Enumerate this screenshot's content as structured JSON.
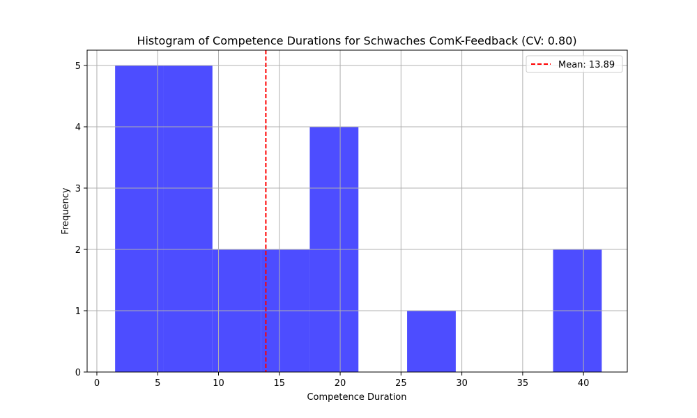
{
  "chart_data": {
    "type": "bar",
    "title": "Histogram of Competence Durations for Schwaches ComK-Feedback (CV: 0.80)",
    "xlabel": "Competence Duration",
    "ylabel": "Frequency",
    "xlim": [
      -0.8,
      43.6
    ],
    "ylim": [
      0,
      5.25
    ],
    "xticks": [
      0,
      5,
      10,
      15,
      20,
      25,
      30,
      35,
      40
    ],
    "yticks": [
      0,
      1,
      2,
      3,
      4,
      5
    ],
    "grid": true,
    "bins": [
      {
        "start": 1.5,
        "end": 5.5,
        "count": 5
      },
      {
        "start": 5.5,
        "end": 9.5,
        "count": 5
      },
      {
        "start": 9.5,
        "end": 13.5,
        "count": 2
      },
      {
        "start": 13.5,
        "end": 17.5,
        "count": 2
      },
      {
        "start": 17.5,
        "end": 21.5,
        "count": 4
      },
      {
        "start": 21.5,
        "end": 25.5,
        "count": 0
      },
      {
        "start": 25.5,
        "end": 29.5,
        "count": 1
      },
      {
        "start": 29.5,
        "end": 33.5,
        "count": 0
      },
      {
        "start": 33.5,
        "end": 37.5,
        "count": 0
      },
      {
        "start": 37.5,
        "end": 41.5,
        "count": 2
      }
    ],
    "bar_color": "#4d4dff",
    "mean": {
      "value": 13.89,
      "label": "Mean: 13.89",
      "color": "#ff0000"
    },
    "legend": {
      "position": "top-right"
    }
  }
}
